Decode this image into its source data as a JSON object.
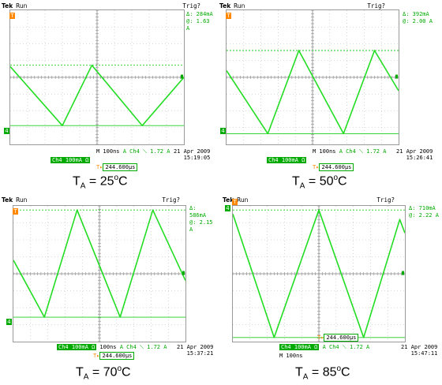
{
  "panels": [
    {
      "brand": "Tek",
      "run_status": "Run",
      "trigger_status": "Trig?",
      "delta_label": "Δ:",
      "delta_value": "284mA",
      "at_label": "@:",
      "at_value": "1.63 A",
      "timebase": "M 100ns",
      "trigger_source": "A  Ch4  ⟍  1.72 A",
      "channel_scale": "Ch4  100mA Ω",
      "position": "244.600µs",
      "date": "21 Apr 2009",
      "time": "15:19:05",
      "caption_t": "T",
      "caption_sub": "A",
      "caption_value": " = 25",
      "caption_sup": "o",
      "caption_unit": "C",
      "trace": [
        [
          0,
          0.42
        ],
        [
          0.3,
          0.86
        ],
        [
          0.47,
          0.41
        ],
        [
          0.76,
          0.86
        ],
        [
          1.0,
          0.5
        ]
      ],
      "cursor_upper": 0.41,
      "cursor_lower": 0.86
    },
    {
      "brand": "Tek",
      "run_status": "Run",
      "trigger_status": "Trig?",
      "delta_label": "Δ:",
      "delta_value": "392mA",
      "at_label": "@:",
      "at_value": "2.00 A",
      "timebase": "M 100ns",
      "trigger_source": "A  Ch4  ⟍  1.72 A",
      "channel_scale": "Ch4  100mA Ω",
      "position": "244.600µs",
      "date": "21 Apr 2009",
      "time": "15:26:41",
      "caption_t": "T",
      "caption_sub": "A",
      "caption_value": " = 50",
      "caption_sup": "o",
      "caption_unit": "C",
      "trace": [
        [
          0,
          0.45
        ],
        [
          0.24,
          0.92
        ],
        [
          0.42,
          0.3
        ],
        [
          0.68,
          0.92
        ],
        [
          0.86,
          0.3
        ],
        [
          1.0,
          0.6
        ]
      ],
      "cursor_upper": 0.3,
      "cursor_lower": 0.92
    },
    {
      "brand": "Tek",
      "run_status": "Run",
      "trigger_status": "Trig?",
      "delta_label": "Δ:",
      "delta_value": "586mA",
      "at_label": "@:",
      "at_value": "2.15 A",
      "timebase": "M 100ns",
      "trigger_source": "A  Ch4  ⟍  1.72 A",
      "channel_scale": "Ch4  100mA Ω",
      "position": "244.600µs",
      "date": "21 Apr 2009",
      "time": "15:37:21",
      "caption_t": "T",
      "caption_sub": "A",
      "caption_value": " = 70",
      "caption_sup": "o",
      "caption_unit": "C",
      "trace": [
        [
          0,
          0.4
        ],
        [
          0.18,
          0.82
        ],
        [
          0.37,
          0.03
        ],
        [
          0.62,
          0.82
        ],
        [
          0.81,
          0.03
        ],
        [
          1.0,
          0.55
        ]
      ],
      "cursor_upper": 0.03,
      "cursor_lower": 0.82
    },
    {
      "brand": "Tek",
      "run_status": "Run",
      "trigger_status": "Trig?",
      "delta_label": "Δ:",
      "delta_value": "710mA",
      "at_label": "@:",
      "at_value": "2.22 A",
      "timebase": "M 100ns",
      "trigger_source": "A  Ch4  ⟍  1.72 A",
      "channel_scale": "Ch4  100mA Ω",
      "position": "244.600µs",
      "date": "21 Apr 2009",
      "time": "15:47:11",
      "caption_t": "T",
      "caption_sub": "A",
      "caption_value": " = 85",
      "caption_sup": "o",
      "caption_unit": "C",
      "trace": [
        [
          0,
          0.06
        ],
        [
          0.24,
          0.97
        ],
        [
          0.5,
          0.03
        ],
        [
          0.76,
          0.97
        ],
        [
          0.97,
          0.1
        ],
        [
          1.0,
          0.2
        ]
      ],
      "cursor_upper": 0.03,
      "cursor_lower": 0.97
    }
  ]
}
